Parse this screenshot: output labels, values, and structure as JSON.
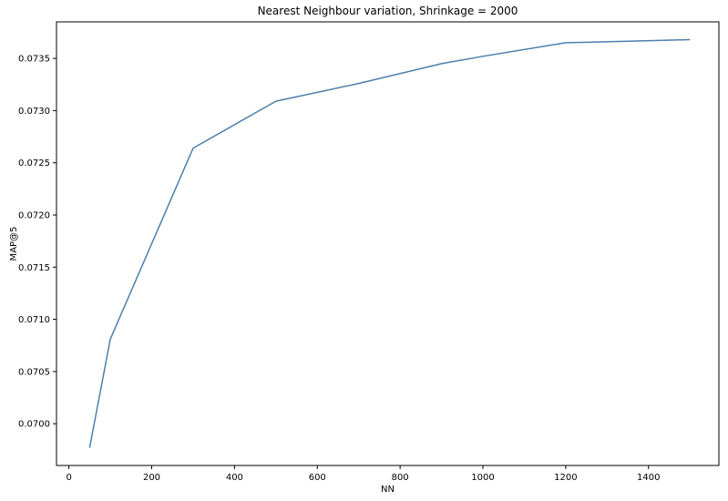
{
  "chart_data": {
    "type": "line",
    "title": "Nearest Neighbour variation, Shrinkage = 2000",
    "xlabel": "NN",
    "ylabel": "MAP@5",
    "x": [
      50,
      100,
      300,
      500,
      700,
      900,
      1000,
      1200,
      1500
    ],
    "series": [
      {
        "values": [
          0.06977,
          0.07081,
          0.07264,
          0.07309,
          0.07326,
          0.07345,
          0.07352,
          0.07365,
          0.07368
        ]
      }
    ],
    "xlim": [
      -30,
      1570
    ],
    "ylim": [
      0.0696,
      0.07385
    ],
    "xticks": [
      0,
      200,
      400,
      600,
      800,
      1000,
      1200,
      1400
    ],
    "xtick_labels": [
      "0",
      "200",
      "400",
      "600",
      "800",
      "1000",
      "1200",
      "1400"
    ],
    "yticks": [
      0.07,
      0.0705,
      0.071,
      0.0715,
      0.072,
      0.0725,
      0.073,
      0.0735
    ],
    "ytick_labels": [
      "0.0700",
      "0.0705",
      "0.0710",
      "0.0715",
      "0.0720",
      "0.0725",
      "0.0730",
      "0.0735"
    ],
    "grid": false,
    "legend": "none",
    "line_color": "#4c7fac"
  }
}
